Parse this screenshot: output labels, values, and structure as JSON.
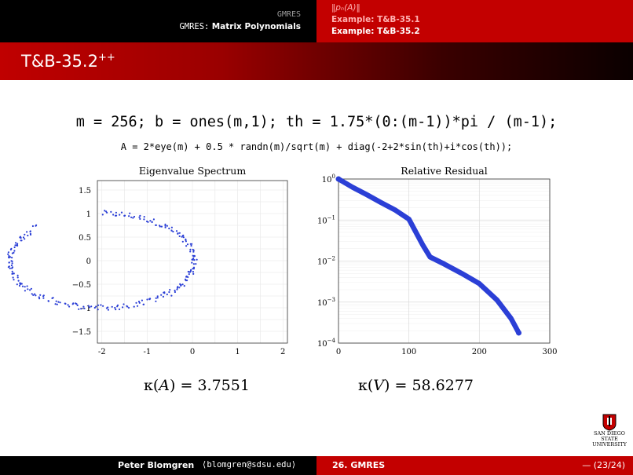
{
  "header": {
    "section_label": "GMRES",
    "subsection_prefix": "GMRES:",
    "subsection_label": "Matrix Polynomials",
    "nav_items": [
      "‖pₙ(A)‖",
      "Example: T&B-35.1",
      "Example: T&B-35.2"
    ]
  },
  "slide": {
    "title": "T&B-35.2",
    "title_sup": "++",
    "code_line1": "m = 256; b = ones(m,1); th = 1.75*(0:(m-1))*pi / (m-1);",
    "code_line2": "A = 2*eye(m) + 0.5 * randn(m)/sqrt(m) + diag(-2+2*sin(th)+i*cos(th));"
  },
  "chart_data": [
    {
      "type": "scatter",
      "title": "Eigenvalue Spectrum",
      "xlim": [
        -2.1,
        2.1
      ],
      "ylim": [
        -1.75,
        1.7
      ],
      "xticks": [
        -2,
        -1,
        0,
        1,
        2
      ],
      "yticks": [
        1.5,
        1,
        0.5,
        0,
        -0.5,
        -1,
        -1.5
      ],
      "grid": true,
      "series_color": "#2b3fd6",
      "description_curve": "points lie near x = -2 + 2*sin(t) + noise, y = cos(t) + noise, t in [0, 1.75*pi]",
      "theta_range": [
        0,
        5.4978
      ],
      "count": 256
    },
    {
      "type": "line",
      "title": "Relative Residual",
      "xlim": [
        0,
        300
      ],
      "xticks": [
        0,
        100,
        200,
        300
      ],
      "yscale": "log",
      "ylim_exp": [
        -4,
        0
      ],
      "ytick_exps": [
        0,
        -1,
        -2,
        -3,
        -4
      ],
      "grid": true,
      "series_color": "#2b3fd6",
      "x": [
        0,
        20,
        40,
        60,
        80,
        100,
        120,
        130,
        150,
        175,
        200,
        225,
        245,
        256
      ],
      "log10_y": [
        0,
        -0.2,
        -0.38,
        -0.57,
        -0.75,
        -0.98,
        -1.62,
        -1.9,
        -2.07,
        -2.3,
        -2.55,
        -2.95,
        -3.4,
        -3.75
      ]
    }
  ],
  "kappa": {
    "left_label": "κ(",
    "left_var": "A",
    "left_value": ") = 3.7551",
    "right_label": "κ(",
    "right_var": "V",
    "right_value": ") = 58.6277"
  },
  "logo": {
    "line1": "SAN DIEGO STATE",
    "line2": "UNIVERSITY"
  },
  "footer": {
    "author": "Peter Blomgren",
    "email": "⟨blomgren@sdsu.edu⟩",
    "section": "26. GMRES",
    "page": "— (23/24)"
  }
}
